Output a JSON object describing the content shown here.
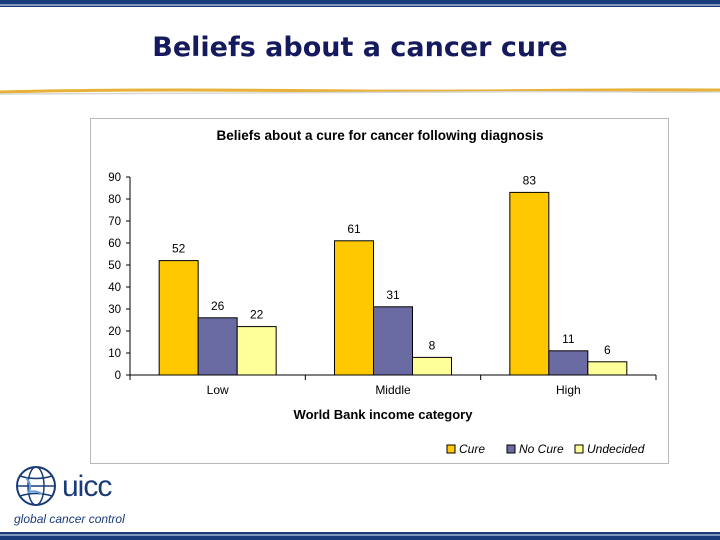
{
  "slide": {
    "title": "Beliefs about a cancer cure"
  },
  "logo": {
    "word": "uicc",
    "tagline": "global cancer control"
  },
  "colors": {
    "title": "#151a5e",
    "cure": "#ffc800",
    "no_cure": "#6b6ba3",
    "undecided": "#ffff99",
    "frame_stripe": "#1a3b7a"
  },
  "chart_data": {
    "type": "bar",
    "title": "Beliefs about a cure for cancer following diagnosis",
    "xlabel": "World Bank income category",
    "ylabel": "",
    "categories": [
      "Low",
      "Middle",
      "High"
    ],
    "series": [
      {
        "name": "Cure",
        "values": [
          52,
          61,
          83
        ]
      },
      {
        "name": "No Cure",
        "values": [
          26,
          31,
          11
        ]
      },
      {
        "name": "Undecided",
        "values": [
          22,
          8,
          6
        ]
      }
    ],
    "ylim": [
      0,
      90
    ],
    "yticks": [
      0,
      10,
      20,
      30,
      40,
      50,
      60,
      70,
      80,
      90
    ],
    "grid": false,
    "legend_position": "bottom-right"
  }
}
